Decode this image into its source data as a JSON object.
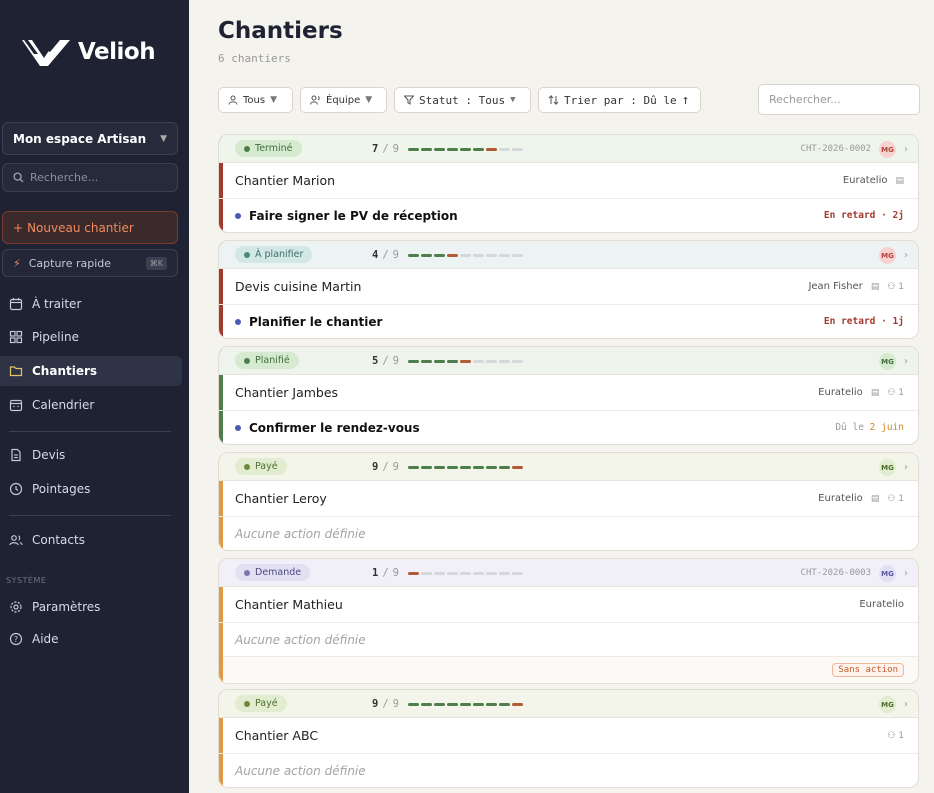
{
  "colors": {
    "sidebar_bg": "#1e2233",
    "accent_orange": "#f08a5d",
    "done_green": "#4d7e4c",
    "current_brown": "#b15c37",
    "late_red": "#a33a2e"
  },
  "sidebar": {
    "logo_text": "Velioh",
    "workspace": "Mon espace Artisan",
    "search_placeholder": "Recherche...",
    "new_button": "Nouveau chantier",
    "new_button_icon": "+",
    "capture_label": "Capture rapide",
    "capture_shortcut": "⌘K",
    "items": [
      {
        "label": "À traiter",
        "icon": "calendar-check-icon"
      },
      {
        "label": "Pipeline",
        "icon": "grid-icon"
      },
      {
        "label": "Chantiers",
        "icon": "folder-icon",
        "active": true
      },
      {
        "label": "Calendrier",
        "icon": "calendar-icon"
      },
      {
        "label": "Devis",
        "icon": "document-icon"
      },
      {
        "label": "Pointages",
        "icon": "clock-icon"
      },
      {
        "label": "Contacts",
        "icon": "users-icon"
      },
      {
        "label": "Paramètres",
        "icon": "gear-icon"
      },
      {
        "label": "Aide",
        "icon": "help-icon"
      }
    ],
    "section_system": "SYSTÈME"
  },
  "main": {
    "title": "Chantiers",
    "subtitle": "6 chantiers",
    "filters": {
      "all": "Tous",
      "team": "Équipe",
      "status": "Statut : Tous",
      "sort": "Trier par : Dû le"
    },
    "search_placeholder": "Rechercher..."
  },
  "cards": [
    {
      "status": "Terminé",
      "step": "7",
      "total": "9",
      "ref": "CHT-2026-0002",
      "avatar": "MG",
      "title": "Chantier Marion",
      "client": "Euratelio",
      "members": "",
      "action": "Faire signer le PV de réception",
      "due": "En retard · 2j"
    },
    {
      "status": "À planifier",
      "step": "4",
      "total": "9",
      "ref": "",
      "avatar": "MG",
      "title": "Devis cuisine Martin",
      "client": "Jean Fisher",
      "members": "1",
      "action": "Planifier le chantier",
      "due": "En retard · 1j"
    },
    {
      "status": "Planifié",
      "step": "5",
      "total": "9",
      "ref": "",
      "avatar": "MG",
      "title": "Chantier Jambes",
      "client": "Euratelio",
      "members": "1",
      "action": "Confirmer le rendez-vous",
      "due_prefix": "Dû le",
      "due": "2 juin"
    },
    {
      "status": "Payé",
      "step": "9",
      "total": "9",
      "ref": "",
      "avatar": "MG",
      "title": "Chantier Leroy",
      "client": "Euratelio",
      "members": "1",
      "none": "Aucune action définie"
    },
    {
      "status": "Demande",
      "step": "1",
      "total": "9",
      "ref": "CHT-2026-0003",
      "avatar": "MG",
      "title": "Chantier Mathieu",
      "client": "Euratelio",
      "members": "",
      "none": "Aucune action définie",
      "flag": "Sans action"
    },
    {
      "status": "Payé",
      "step": "9",
      "total": "9",
      "ref": "",
      "avatar": "MG",
      "title": "Chantier ABC",
      "client": "",
      "members": "1",
      "none": "Aucune action définie"
    }
  ]
}
